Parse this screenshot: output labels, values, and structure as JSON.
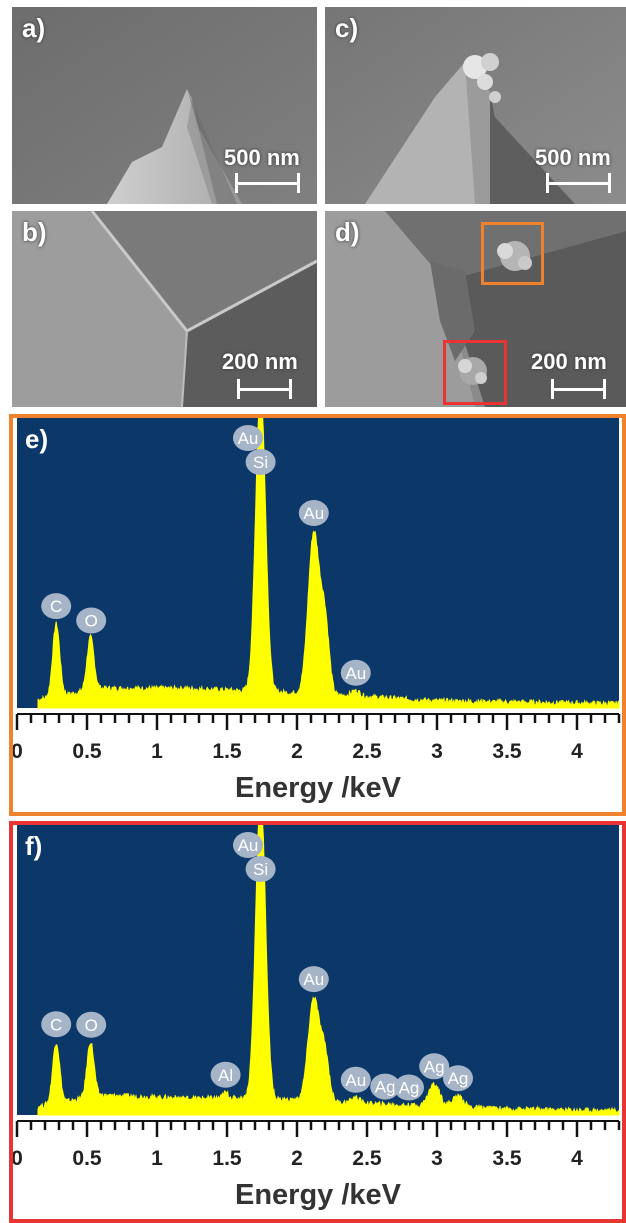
{
  "figure": {
    "panels": {
      "a": {
        "letter": "a)",
        "scalebar": "500 nm"
      },
      "b": {
        "letter": "b)",
        "scalebar": "200 nm"
      },
      "c": {
        "letter": "c)",
        "scalebar": "500 nm"
      },
      "d": {
        "letter": "d)",
        "scalebar": "200 nm"
      }
    },
    "colors": {
      "spectrum_bg": "#0b3769",
      "spectrum_fill": "#ffff00",
      "badge": "#a6b4c8",
      "frame_e": "#f0822e",
      "frame_f": "#e83433",
      "roi_orange": "#f0822e",
      "roi_red": "#e83433"
    }
  },
  "chart_data": [
    {
      "type": "area",
      "panel_letter": "e)",
      "xlabel": "Energy /keV",
      "xlim": [
        0,
        4.3
      ],
      "x_ticks": [
        "0",
        "0.5",
        "1",
        "1.5",
        "2",
        "2.5",
        "3",
        "3.5",
        "4"
      ],
      "x_tick_values": [
        0,
        0.5,
        1,
        1.5,
        2,
        2.5,
        3,
        3.5,
        4
      ],
      "ylim": [
        0,
        1
      ],
      "baseline": [
        [
          0.15,
          0.03
        ],
        [
          0.6,
          0.07
        ],
        [
          1.2,
          0.07
        ],
        [
          1.7,
          0.06
        ],
        [
          2.1,
          0.05
        ],
        [
          2.5,
          0.04
        ],
        [
          3.0,
          0.025
        ],
        [
          3.6,
          0.02
        ],
        [
          4.3,
          0.015
        ]
      ],
      "peaks": [
        {
          "center": 0.28,
          "height": 0.26,
          "width": 0.025
        },
        {
          "center": 0.525,
          "height": 0.19,
          "width": 0.025
        },
        {
          "center": 1.74,
          "height": 1.1,
          "width": 0.035
        },
        {
          "center": 2.12,
          "height": 0.58,
          "width": 0.04
        },
        {
          "center": 2.2,
          "height": 0.25,
          "width": 0.03
        },
        {
          "center": 2.42,
          "height": 0.02,
          "width": 0.03
        }
      ],
      "annotations": [
        {
          "label": "C",
          "energy": 0.28
        },
        {
          "label": "O",
          "energy": 0.53
        },
        {
          "label": "Au",
          "energy": 1.65,
          "at_top": true
        },
        {
          "label": "Si",
          "energy": 1.74,
          "below_top": true
        },
        {
          "label": "Au",
          "energy": 2.12
        },
        {
          "label": "Au",
          "energy": 2.42
        }
      ]
    },
    {
      "type": "area",
      "panel_letter": "f)",
      "xlabel": "Energy /keV",
      "xlim": [
        0,
        4.3
      ],
      "x_ticks": [
        "0",
        "0.5",
        "1",
        "1.5",
        "2",
        "2.5",
        "3",
        "3.5",
        "4"
      ],
      "x_tick_values": [
        0,
        0.5,
        1,
        1.5,
        2,
        2.5,
        3,
        3.5,
        4
      ],
      "ylim": [
        0,
        1
      ],
      "baseline": [
        [
          0.15,
          0.03
        ],
        [
          0.6,
          0.07
        ],
        [
          1.2,
          0.06
        ],
        [
          1.7,
          0.06
        ],
        [
          2.1,
          0.05
        ],
        [
          2.5,
          0.04
        ],
        [
          3.0,
          0.03
        ],
        [
          3.6,
          0.02
        ],
        [
          4.3,
          0.015
        ]
      ],
      "peaks": [
        {
          "center": 0.28,
          "height": 0.22,
          "width": 0.025
        },
        {
          "center": 0.525,
          "height": 0.2,
          "width": 0.025
        },
        {
          "center": 1.49,
          "height": 0.02,
          "width": 0.02
        },
        {
          "center": 1.74,
          "height": 1.1,
          "width": 0.035
        },
        {
          "center": 2.12,
          "height": 0.37,
          "width": 0.04
        },
        {
          "center": 2.2,
          "height": 0.16,
          "width": 0.03
        },
        {
          "center": 2.42,
          "height": 0.02,
          "width": 0.03
        },
        {
          "center": 2.98,
          "height": 0.08,
          "width": 0.04
        },
        {
          "center": 3.15,
          "height": 0.04,
          "width": 0.04
        }
      ],
      "annotations": [
        {
          "label": "C",
          "energy": 0.28
        },
        {
          "label": "O",
          "energy": 0.53
        },
        {
          "label": "Al",
          "energy": 1.49
        },
        {
          "label": "Au",
          "energy": 1.65,
          "at_top": true
        },
        {
          "label": "Si",
          "energy": 1.74,
          "below_top": true
        },
        {
          "label": "Au",
          "energy": 2.12
        },
        {
          "label": "Au",
          "energy": 2.42
        },
        {
          "label": "Ag",
          "energy": 2.63
        },
        {
          "label": "Ag",
          "energy": 2.8
        },
        {
          "label": "Ag",
          "energy": 2.98
        },
        {
          "label": "Ag",
          "energy": 3.15
        }
      ]
    }
  ]
}
